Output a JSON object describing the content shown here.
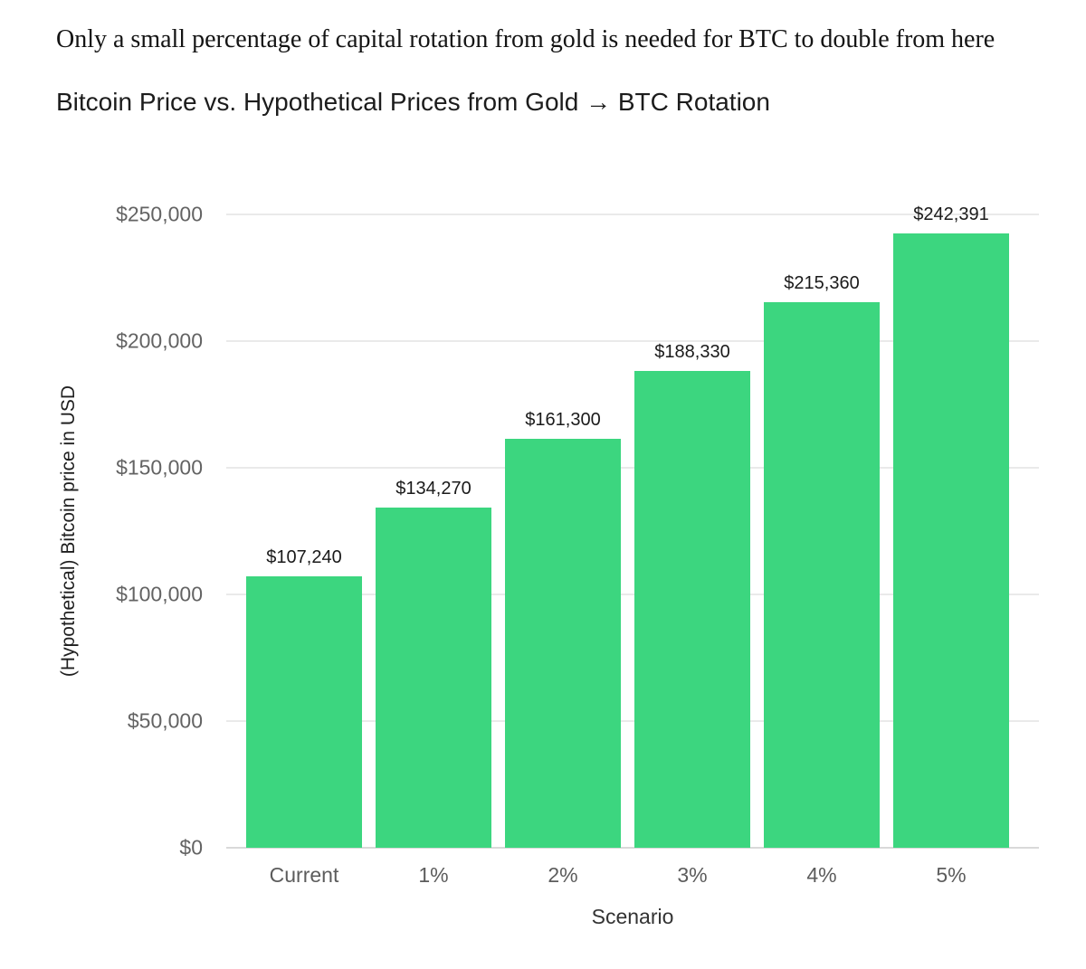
{
  "page": {
    "headline": "Only a small percentage of capital rotation from gold is needed for BTC to double from here"
  },
  "chart_data": {
    "type": "bar",
    "title": "Bitcoin Price vs. Hypothetical Prices from Gold → BTC Rotation",
    "categories": [
      "Current",
      "1%",
      "2%",
      "3%",
      "4%",
      "5%"
    ],
    "values": [
      107240,
      134270,
      161300,
      188330,
      215360,
      242391
    ],
    "value_labels": [
      "$107,240",
      "$134,270",
      "$161,300",
      "$188,330",
      "$215,360",
      "$242,391"
    ],
    "xlabel": "Scenario",
    "ylabel": "(Hypothetical) Bitcoin price in USD",
    "ylim": [
      0,
      250000
    ],
    "yticks": [
      0,
      50000,
      100000,
      150000,
      200000,
      250000
    ],
    "ytick_labels": [
      "$0",
      "$50,000",
      "$100,000",
      "$150,000",
      "$200,000",
      "$250,000"
    ],
    "grid": true,
    "legend": false,
    "bar_color": "#3cd67f",
    "gridline_color": "#eaeaea",
    "baseline_color": "#d9d9d9",
    "background_color": "#ffffff"
  }
}
